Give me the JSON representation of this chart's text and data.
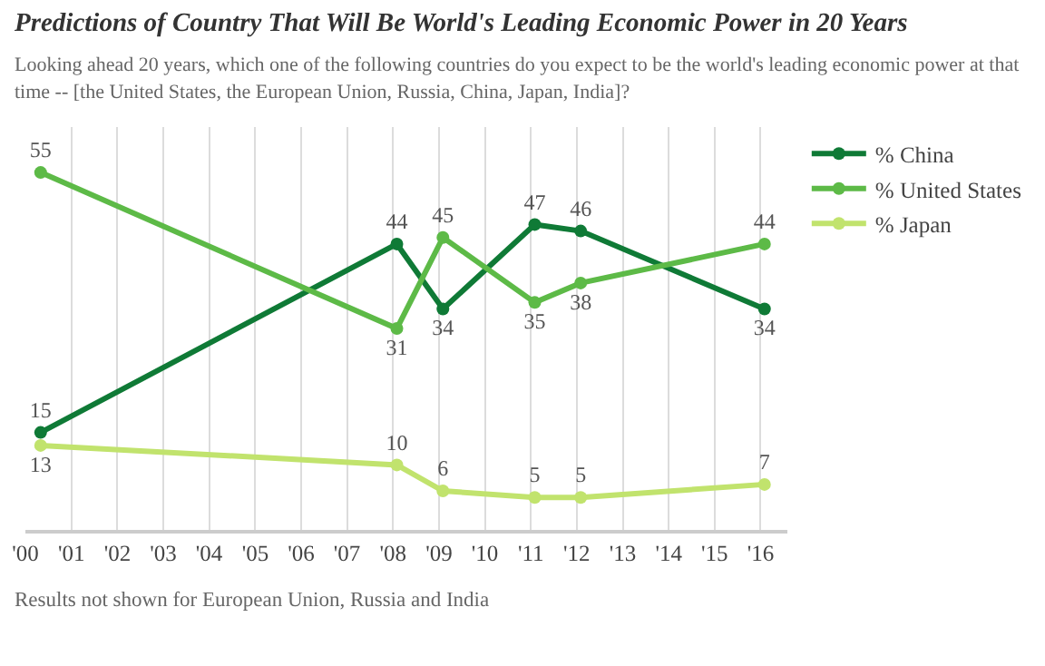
{
  "chart_data": {
    "type": "line",
    "title": "Predictions of Country That Will Be World's Leading Economic Power in 20 Years",
    "subtitle": "Looking ahead 20 years, which one of the following countries do you expect to be the world's leading economic power at that time -- [the United States, the European Union, Russia, China, Japan, India]?",
    "x": [
      "2000-05",
      "2008-02",
      "2009-02",
      "2011-02",
      "2012-02",
      "2016-02"
    ],
    "series": [
      {
        "name": "% China",
        "color": "#0f7a36",
        "values": [
          15,
          44,
          34,
          47,
          46,
          34
        ]
      },
      {
        "name": "% United States",
        "color": "#5dba47",
        "values": [
          55,
          31,
          45,
          35,
          38,
          44
        ]
      },
      {
        "name": "% Japan",
        "color": "#c1e36d",
        "values": [
          13,
          10,
          6,
          5,
          5,
          7
        ]
      }
    ],
    "xlim": [
      "2000",
      "2016-08"
    ],
    "xticks": [
      {
        "value": "2000",
        "label": "'00"
      },
      {
        "value": "2001",
        "label": "'01"
      },
      {
        "value": "2002",
        "label": "'02"
      },
      {
        "value": "2003",
        "label": "'03"
      },
      {
        "value": "2004",
        "label": "'04"
      },
      {
        "value": "2005",
        "label": "'05"
      },
      {
        "value": "2006",
        "label": "'06"
      },
      {
        "value": "2007",
        "label": "'07"
      },
      {
        "value": "2008",
        "label": "'08"
      },
      {
        "value": "2009",
        "label": "'09"
      },
      {
        "value": "2010",
        "label": "'10"
      },
      {
        "value": "2011",
        "label": "'11"
      },
      {
        "value": "2012",
        "label": "'12"
      },
      {
        "value": "2013",
        "label": "'13"
      },
      {
        "value": "2014",
        "label": "'14"
      },
      {
        "value": "2015",
        "label": "'15"
      },
      {
        "value": "2016",
        "label": "'16"
      }
    ],
    "ylim": [
      0,
      62
    ],
    "tick_labels": "x",
    "grid": "x",
    "legend": "top right",
    "marker": "circle",
    "line_style": "solid",
    "data_labels": true,
    "annotations": [
      "Results not shown for European Union, Russia and India"
    ]
  }
}
